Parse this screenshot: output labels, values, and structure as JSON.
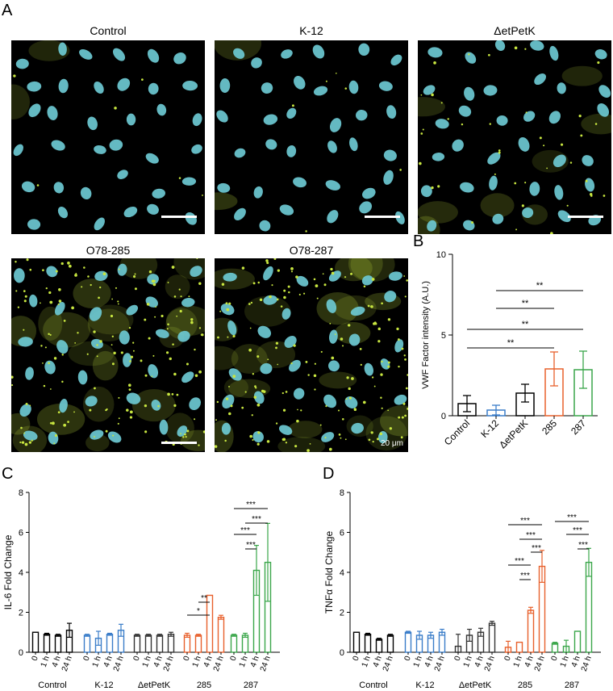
{
  "panels": {
    "A": "A",
    "B": "B",
    "C": "C",
    "D": "D"
  },
  "micrographs": [
    {
      "title": "Control",
      "signal": "low"
    },
    {
      "title": "K-12",
      "signal": "low"
    },
    {
      "title": "ΔetPetK",
      "signal": "medium"
    },
    {
      "title": "O78-285",
      "signal": "high"
    },
    {
      "title": "O78-287",
      "signal": "high"
    }
  ],
  "scale_label": "20 μm",
  "colors": {
    "nuclei": "#6cc9d2",
    "vwf": "#c8e640",
    "control": "#000000",
    "k12": "#3a7dc9",
    "detpetk": "#333333",
    "s285": "#e8602c",
    "s287": "#3aa64a"
  },
  "chart_data": [
    {
      "id": "B",
      "type": "bar",
      "ylabel": "VWF Factor intensity (A.U.)",
      "categories": [
        "Control",
        "K-12",
        "ΔetPetK",
        "285",
        "287"
      ],
      "values": [
        0.75,
        0.35,
        1.4,
        2.9,
        2.85
      ],
      "errors": [
        0.5,
        0.3,
        0.55,
        1.05,
        1.15
      ],
      "colors": [
        "#000000",
        "#3a7dc9",
        "#000000",
        "#e8602c",
        "#3aa64a"
      ],
      "ylim": [
        0,
        10
      ],
      "yticks": [
        0,
        5,
        10
      ],
      "significance": [
        {
          "from": 1,
          "to": 4,
          "label": "**"
        },
        {
          "from": 1,
          "to": 3,
          "label": "**"
        },
        {
          "from": 0,
          "to": 4,
          "label": "**"
        },
        {
          "from": 0,
          "to": 3,
          "label": "**"
        }
      ]
    },
    {
      "id": "C",
      "type": "bar",
      "ylabel": "IL-6 Fold Change",
      "groups": [
        "Control",
        "K-12",
        "ΔetPetK",
        "285",
        "287"
      ],
      "timepoints": [
        "0",
        "1 h",
        "4 h",
        "24 h"
      ],
      "colors": [
        "#000000",
        "#3a7dc9",
        "#333333",
        "#e8602c",
        "#3aa64a"
      ],
      "values": [
        [
          1.0,
          0.9,
          0.85,
          1.1
        ],
        [
          0.85,
          0.7,
          0.9,
          1.1
        ],
        [
          0.85,
          0.85,
          0.85,
          0.9
        ],
        [
          0.85,
          0.85,
          2.85,
          1.75
        ],
        [
          0.85,
          0.85,
          4.1,
          4.5
        ]
      ],
      "errors": [
        [
          0.0,
          0.05,
          0.05,
          0.35
        ],
        [
          0.05,
          0.35,
          0.05,
          0.3
        ],
        [
          0.05,
          0.05,
          0.05,
          0.1
        ],
        [
          0.1,
          0.05,
          0.0,
          0.1
        ],
        [
          0.05,
          0.1,
          1.25,
          1.95
        ]
      ],
      "ylim": [
        0,
        8
      ],
      "yticks": [
        0,
        2,
        4,
        6,
        8
      ],
      "significance": [
        {
          "group": 3,
          "from": 0,
          "to": 2,
          "label": "*"
        },
        {
          "group": 3,
          "from": 1,
          "to": 2,
          "label": "**"
        },
        {
          "group": 4,
          "from": 1,
          "to": 2,
          "label": "***"
        },
        {
          "group": 4,
          "from": 0,
          "to": 2,
          "label": "***"
        },
        {
          "group": 4,
          "from": 1,
          "to": 3,
          "label": "***"
        },
        {
          "group": 4,
          "from": 0,
          "to": 3,
          "label": "***"
        }
      ]
    },
    {
      "id": "D",
      "type": "bar",
      "ylabel": "TNFα Fold Change",
      "groups": [
        "Control",
        "K-12",
        "ΔetPetK",
        "285",
        "287"
      ],
      "timepoints": [
        "0",
        "1 h",
        "4 h",
        "24 h"
      ],
      "colors": [
        "#000000",
        "#3a7dc9",
        "#333333",
        "#e8602c",
        "#3aa64a"
      ],
      "values": [
        [
          1.0,
          0.9,
          0.65,
          0.85
        ],
        [
          1.0,
          0.85,
          0.85,
          1.0
        ],
        [
          0.3,
          0.85,
          1.0,
          1.45
        ],
        [
          0.25,
          0.5,
          2.1,
          4.3
        ],
        [
          0.45,
          0.3,
          1.05,
          4.5
        ]
      ],
      "errors": [
        [
          0.0,
          0.05,
          0.05,
          0.05
        ],
        [
          0.05,
          0.2,
          0.15,
          0.15
        ],
        [
          0.6,
          0.3,
          0.2,
          0.1
        ],
        [
          0.3,
          0.0,
          0.15,
          0.8
        ],
        [
          0.05,
          0.3,
          0.0,
          0.7
        ]
      ],
      "ylim": [
        0,
        8
      ],
      "yticks": [
        0,
        2,
        4,
        6,
        8
      ],
      "significance": [
        {
          "group": 3,
          "from": 1,
          "to": 2,
          "label": "***"
        },
        {
          "group": 3,
          "from": 0,
          "to": 2,
          "label": "***"
        },
        {
          "group": 3,
          "from": 2,
          "to": 3,
          "label": "***"
        },
        {
          "group": 3,
          "from": 1,
          "to": 3,
          "label": "***"
        },
        {
          "group": 3,
          "from": 0,
          "to": 3,
          "label": "***"
        },
        {
          "group": 4,
          "from": 2,
          "to": 3,
          "label": "***"
        },
        {
          "group": 4,
          "from": 1,
          "to": 3,
          "label": "***"
        },
        {
          "group": 4,
          "from": 0,
          "to": 3,
          "label": "***"
        }
      ]
    }
  ]
}
